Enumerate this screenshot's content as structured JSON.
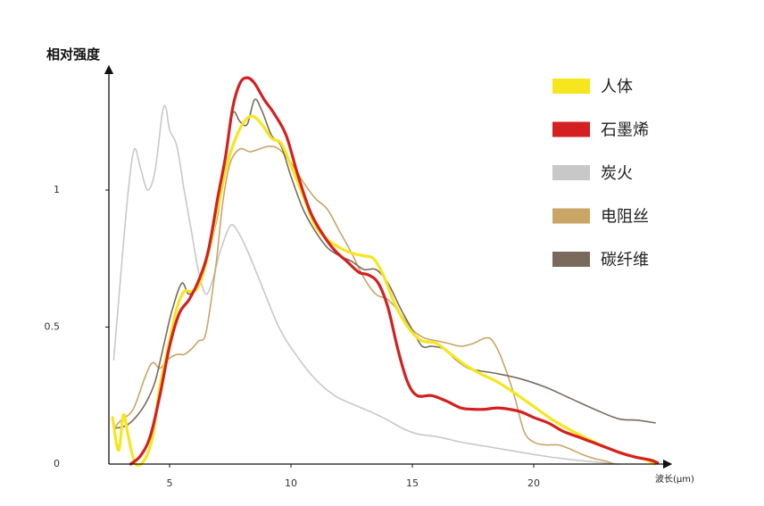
{
  "chart_data": {
    "type": "line",
    "title": "",
    "ylabel": "相对强度",
    "xlabel": "波长(μm)",
    "xlim": [
      2.6,
      25.2
    ],
    "ylim": [
      0,
      1.45
    ],
    "x_ticks": [
      5,
      10,
      15,
      20
    ],
    "x_tick_labels": [
      "5",
      "10",
      "15",
      "20"
    ],
    "y_ticks": [
      0,
      0.5,
      1
    ],
    "y_tick_labels": [
      "0",
      "0.5",
      "1"
    ],
    "legend_position": "top-right",
    "series": [
      {
        "name": "炭火",
        "color": "#c8c8c8",
        "stroke_width": 1.6,
        "points": [
          [
            2.7,
            0.38
          ],
          [
            3.0,
            0.7
          ],
          [
            3.3,
            1.0
          ],
          [
            3.55,
            1.15
          ],
          [
            3.8,
            1.08
          ],
          [
            4.1,
            1.0
          ],
          [
            4.4,
            1.07
          ],
          [
            4.7,
            1.28
          ],
          [
            4.85,
            1.3
          ],
          [
            5.0,
            1.22
          ],
          [
            5.3,
            1.16
          ],
          [
            5.6,
            1.0
          ],
          [
            5.9,
            0.85
          ],
          [
            6.2,
            0.7
          ],
          [
            6.5,
            0.62
          ],
          [
            6.8,
            0.68
          ],
          [
            7.1,
            0.78
          ],
          [
            7.5,
            0.87
          ],
          [
            7.8,
            0.85
          ],
          [
            8.2,
            0.78
          ],
          [
            8.8,
            0.65
          ],
          [
            9.5,
            0.5
          ],
          [
            10.2,
            0.4
          ],
          [
            11.0,
            0.31
          ],
          [
            11.8,
            0.25
          ],
          [
            12.5,
            0.22
          ],
          [
            13.3,
            0.19
          ],
          [
            14.0,
            0.16
          ],
          [
            14.6,
            0.13
          ],
          [
            15.2,
            0.11
          ],
          [
            16.0,
            0.1
          ],
          [
            17.0,
            0.08
          ],
          [
            18.0,
            0.065
          ],
          [
            19.0,
            0.05
          ],
          [
            20.0,
            0.035
          ],
          [
            21.0,
            0.022
          ],
          [
            22.0,
            0.012
          ],
          [
            23.0,
            0.004
          ],
          [
            23.5,
            0.0
          ]
        ]
      },
      {
        "name": "电阻丝",
        "color": "#c9a566",
        "stroke_width": 1.6,
        "points": [
          [
            2.7,
            0.13
          ],
          [
            3.0,
            0.16
          ],
          [
            3.5,
            0.2
          ],
          [
            4.0,
            0.32
          ],
          [
            4.3,
            0.37
          ],
          [
            4.6,
            0.35
          ],
          [
            4.9,
            0.38
          ],
          [
            5.3,
            0.4
          ],
          [
            5.6,
            0.4
          ],
          [
            5.9,
            0.42
          ],
          [
            6.2,
            0.45
          ],
          [
            6.5,
            0.48
          ],
          [
            6.9,
            0.72
          ],
          [
            7.2,
            0.96
          ],
          [
            7.5,
            1.1
          ],
          [
            7.9,
            1.15
          ],
          [
            8.3,
            1.14
          ],
          [
            8.7,
            1.15
          ],
          [
            9.1,
            1.16
          ],
          [
            9.5,
            1.15
          ],
          [
            10.0,
            1.1
          ],
          [
            10.5,
            1.03
          ],
          [
            11.0,
            0.97
          ],
          [
            11.5,
            0.93
          ],
          [
            12.0,
            0.85
          ],
          [
            12.5,
            0.77
          ],
          [
            13.0,
            0.68
          ],
          [
            13.5,
            0.62
          ],
          [
            14.0,
            0.6
          ],
          [
            14.5,
            0.55
          ],
          [
            15.0,
            0.49
          ],
          [
            15.5,
            0.46
          ],
          [
            16.0,
            0.45
          ],
          [
            16.5,
            0.44
          ],
          [
            17.0,
            0.43
          ],
          [
            17.5,
            0.44
          ],
          [
            18.0,
            0.46
          ],
          [
            18.3,
            0.45
          ],
          [
            18.7,
            0.38
          ],
          [
            19.2,
            0.25
          ],
          [
            19.6,
            0.12
          ],
          [
            20.0,
            0.08
          ],
          [
            20.5,
            0.07
          ],
          [
            21.0,
            0.07
          ],
          [
            21.5,
            0.055
          ],
          [
            22.0,
            0.035
          ],
          [
            22.5,
            0.02
          ],
          [
            23.0,
            0.01
          ],
          [
            23.3,
            0.0
          ]
        ]
      },
      {
        "name": "碳纤维",
        "color": "#7a6a5c",
        "stroke_width": 1.6,
        "points": [
          [
            2.7,
            0.13
          ],
          [
            3.2,
            0.14
          ],
          [
            3.6,
            0.17
          ],
          [
            4.0,
            0.22
          ],
          [
            4.4,
            0.3
          ],
          [
            4.8,
            0.45
          ],
          [
            5.1,
            0.56
          ],
          [
            5.5,
            0.66
          ],
          [
            5.8,
            0.62
          ],
          [
            6.2,
            0.66
          ],
          [
            6.6,
            0.77
          ],
          [
            7.0,
            0.92
          ],
          [
            7.3,
            1.12
          ],
          [
            7.6,
            1.28
          ],
          [
            7.9,
            1.25
          ],
          [
            8.2,
            1.24
          ],
          [
            8.5,
            1.33
          ],
          [
            8.8,
            1.29
          ],
          [
            9.2,
            1.2
          ],
          [
            9.6,
            1.16
          ],
          [
            10.0,
            1.05
          ],
          [
            10.5,
            0.93
          ],
          [
            11.0,
            0.85
          ],
          [
            11.5,
            0.79
          ],
          [
            12.0,
            0.76
          ],
          [
            12.5,
            0.74
          ],
          [
            13.0,
            0.71
          ],
          [
            13.5,
            0.71
          ],
          [
            14.0,
            0.66
          ],
          [
            14.5,
            0.57
          ],
          [
            15.0,
            0.49
          ],
          [
            15.4,
            0.43
          ],
          [
            15.8,
            0.43
          ],
          [
            16.3,
            0.42
          ],
          [
            16.8,
            0.38
          ],
          [
            17.3,
            0.35
          ],
          [
            17.8,
            0.34
          ],
          [
            18.5,
            0.33
          ],
          [
            19.5,
            0.31
          ],
          [
            20.5,
            0.28
          ],
          [
            21.5,
            0.24
          ],
          [
            22.5,
            0.2
          ],
          [
            23.5,
            0.165
          ],
          [
            24.3,
            0.16
          ],
          [
            25.0,
            0.15
          ]
        ]
      },
      {
        "name": "人体",
        "color": "#f5e61e",
        "stroke_width": 3.2,
        "points": [
          [
            2.65,
            0.17
          ],
          [
            2.9,
            0.05
          ],
          [
            3.1,
            0.18
          ],
          [
            3.3,
            0.1
          ],
          [
            3.6,
            0.0
          ],
          [
            4.0,
            0.02
          ],
          [
            4.3,
            0.1
          ],
          [
            4.6,
            0.28
          ],
          [
            5.0,
            0.45
          ],
          [
            5.3,
            0.57
          ],
          [
            5.6,
            0.63
          ],
          [
            5.9,
            0.63
          ],
          [
            6.2,
            0.65
          ],
          [
            6.6,
            0.77
          ],
          [
            7.0,
            0.94
          ],
          [
            7.3,
            1.07
          ],
          [
            7.6,
            1.16
          ],
          [
            8.0,
            1.24
          ],
          [
            8.4,
            1.27
          ],
          [
            8.8,
            1.24
          ],
          [
            9.2,
            1.19
          ],
          [
            9.6,
            1.17
          ],
          [
            10.0,
            1.09
          ],
          [
            10.5,
            0.98
          ],
          [
            11.0,
            0.87
          ],
          [
            11.5,
            0.82
          ],
          [
            12.0,
            0.79
          ],
          [
            12.5,
            0.77
          ],
          [
            13.0,
            0.76
          ],
          [
            13.4,
            0.75
          ],
          [
            13.8,
            0.69
          ],
          [
            14.2,
            0.6
          ],
          [
            14.6,
            0.53
          ],
          [
            15.0,
            0.48
          ],
          [
            15.4,
            0.45
          ],
          [
            16.0,
            0.44
          ],
          [
            16.6,
            0.4
          ],
          [
            17.2,
            0.36
          ],
          [
            17.8,
            0.33
          ],
          [
            18.5,
            0.3
          ],
          [
            19.2,
            0.26
          ],
          [
            20.0,
            0.21
          ],
          [
            20.8,
            0.16
          ],
          [
            21.6,
            0.12
          ],
          [
            22.5,
            0.08
          ],
          [
            23.3,
            0.05
          ],
          [
            24.0,
            0.03
          ],
          [
            24.5,
            0.02
          ],
          [
            25.0,
            0.0
          ]
        ]
      },
      {
        "name": "石墨烯",
        "color": "#d42020",
        "stroke_width": 3.2,
        "points": [
          [
            3.4,
            0.0
          ],
          [
            3.8,
            0.03
          ],
          [
            4.2,
            0.1
          ],
          [
            4.6,
            0.25
          ],
          [
            5.0,
            0.43
          ],
          [
            5.4,
            0.55
          ],
          [
            5.8,
            0.6
          ],
          [
            6.2,
            0.67
          ],
          [
            6.6,
            0.78
          ],
          [
            7.0,
            0.98
          ],
          [
            7.3,
            1.12
          ],
          [
            7.6,
            1.3
          ],
          [
            7.9,
            1.39
          ],
          [
            8.2,
            1.41
          ],
          [
            8.5,
            1.39
          ],
          [
            8.9,
            1.33
          ],
          [
            9.3,
            1.28
          ],
          [
            9.8,
            1.2
          ],
          [
            10.3,
            1.05
          ],
          [
            10.8,
            0.92
          ],
          [
            11.3,
            0.84
          ],
          [
            11.8,
            0.78
          ],
          [
            12.3,
            0.74
          ],
          [
            12.8,
            0.7
          ],
          [
            13.2,
            0.69
          ],
          [
            13.6,
            0.66
          ],
          [
            14.0,
            0.57
          ],
          [
            14.4,
            0.42
          ],
          [
            14.8,
            0.3
          ],
          [
            15.2,
            0.25
          ],
          [
            15.8,
            0.25
          ],
          [
            16.4,
            0.23
          ],
          [
            17.0,
            0.205
          ],
          [
            17.5,
            0.2
          ],
          [
            18.0,
            0.2
          ],
          [
            18.5,
            0.205
          ],
          [
            19.0,
            0.2
          ],
          [
            19.5,
            0.19
          ],
          [
            20.0,
            0.17
          ],
          [
            20.6,
            0.15
          ],
          [
            21.2,
            0.12
          ],
          [
            21.8,
            0.1
          ],
          [
            22.4,
            0.08
          ],
          [
            23.0,
            0.06
          ],
          [
            23.6,
            0.04
          ],
          [
            24.2,
            0.025
          ],
          [
            24.8,
            0.015
          ],
          [
            25.1,
            0.005
          ]
        ]
      }
    ],
    "legend": [
      {
        "name": "人体",
        "color": "#f5e61e"
      },
      {
        "name": "石墨烯",
        "color": "#d42020"
      },
      {
        "name": "炭火",
        "color": "#c8c8c8"
      },
      {
        "name": "电阻丝",
        "color": "#c9a566"
      },
      {
        "name": "碳纤维",
        "color": "#7a6a5c"
      }
    ]
  }
}
